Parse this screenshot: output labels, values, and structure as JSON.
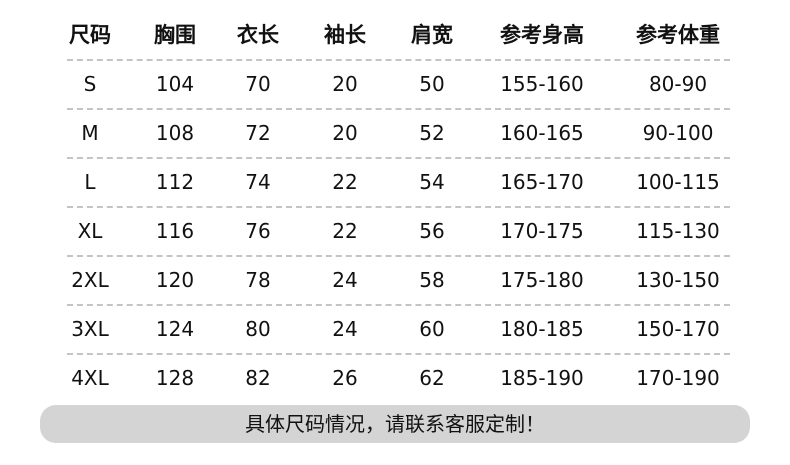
{
  "table": {
    "headers": [
      "尺码",
      "胸围",
      "衣长",
      "袖长",
      "肩宽",
      "参考身高",
      "参考体重"
    ],
    "rows": [
      [
        "S",
        "104",
        "70",
        "20",
        "50",
        "155-160",
        "80-90"
      ],
      [
        "M",
        "108",
        "72",
        "20",
        "52",
        "160-165",
        "90-100"
      ],
      [
        "L",
        "112",
        "74",
        "22",
        "54",
        "165-170",
        "100-115"
      ],
      [
        "XL",
        "116",
        "76",
        "22",
        "56",
        "170-175",
        "115-130"
      ],
      [
        "2XL",
        "120",
        "78",
        "24",
        "58",
        "175-180",
        "130-150"
      ],
      [
        "3XL",
        "124",
        "80",
        "24",
        "60",
        "180-185",
        "150-170"
      ],
      [
        "4XL",
        "128",
        "82",
        "26",
        "62",
        "185-190",
        "170-190"
      ]
    ]
  },
  "note": "具体尺码情况，请联系客服定制！",
  "colors": {
    "divider": "#c4c4c4",
    "note_background": "#d4d4d4",
    "text": "#111111"
  }
}
